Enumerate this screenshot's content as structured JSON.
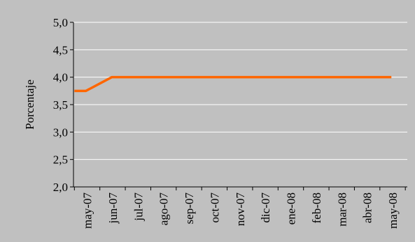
{
  "chart_data": {
    "type": "line",
    "title": "",
    "xlabel": "",
    "ylabel": "Porcentaje",
    "ylim": [
      2.0,
      5.0
    ],
    "yticks": [
      "2,0",
      "2,5",
      "3,0",
      "3,5",
      "4,0",
      "4,5",
      "5,0"
    ],
    "categories": [
      "may-07",
      "jun-07",
      "jul-07",
      "ago-07",
      "sep-07",
      "oct-07",
      "nov-07",
      "dic-07",
      "ene-08",
      "feb-08",
      "mar-08",
      "abr-08",
      "may-08"
    ],
    "grid": true,
    "legend": "none",
    "series": [
      {
        "color": "#ff6600",
        "points": [
          {
            "x": "2007-05-01",
            "y": 3.75
          },
          {
            "x": "2007-05-15",
            "y": 3.75
          },
          {
            "x": "2007-06-15",
            "y": 4.0
          },
          {
            "x": "2008-05-15",
            "y": 4.0
          }
        ]
      }
    ],
    "colors": {
      "background": "#c0c0c0",
      "gridline": "#ffffff",
      "axis": "#000000"
    }
  }
}
